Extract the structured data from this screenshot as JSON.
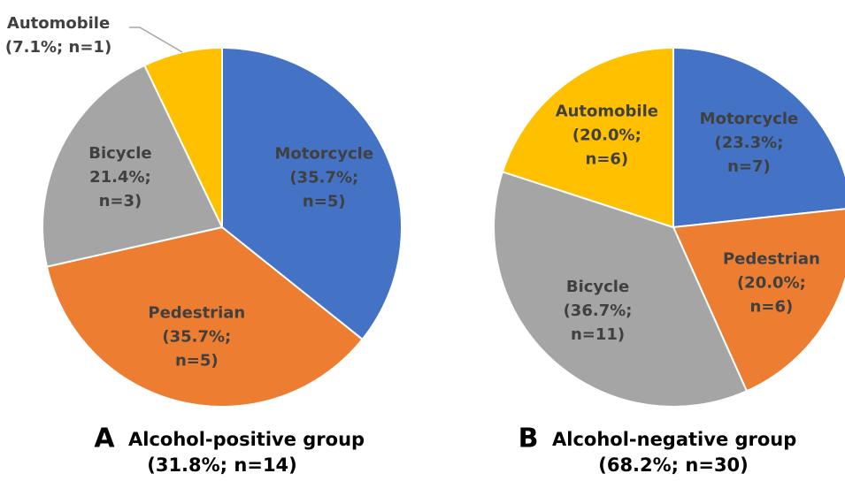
{
  "chart_data": [
    {
      "type": "pie",
      "panel": "A",
      "title": "Alcohol-positive group",
      "subtitle": "(31.8%; n=14)",
      "categories": [
        "Motorcycle",
        "Pedestrian",
        "Bicycle",
        "Automobile"
      ],
      "values": [
        35.7,
        35.7,
        21.4,
        7.1
      ],
      "value_labels": [
        [
          "(35.7%;",
          "n=5)"
        ],
        [
          "(35.7%;",
          "n=5)"
        ],
        [
          "21.4%;",
          "n=3)"
        ],
        [
          "(7.1%; n=1)"
        ]
      ],
      "colors": [
        "#4472c4",
        "#ed7d31",
        "#a5a5a5",
        "#ffc000"
      ]
    },
    {
      "type": "pie",
      "panel": "B",
      "title": "Alcohol-negative group",
      "subtitle": "(68.2%; n=30)",
      "categories": [
        "Motorcycle",
        "Pedestrian",
        "Bicycle",
        "Automobile"
      ],
      "values": [
        23.3,
        20.0,
        36.7,
        20.0
      ],
      "value_labels": [
        [
          "(23.3%;",
          "n=7)"
        ],
        [
          "(20.0%;",
          "n=6)"
        ],
        [
          "(36.7%;",
          "n=11)"
        ],
        [
          "(20.0%;",
          "n=6)"
        ]
      ],
      "colors": [
        "#4472c4",
        "#ed7d31",
        "#a5a5a5",
        "#ffc000"
      ]
    }
  ]
}
